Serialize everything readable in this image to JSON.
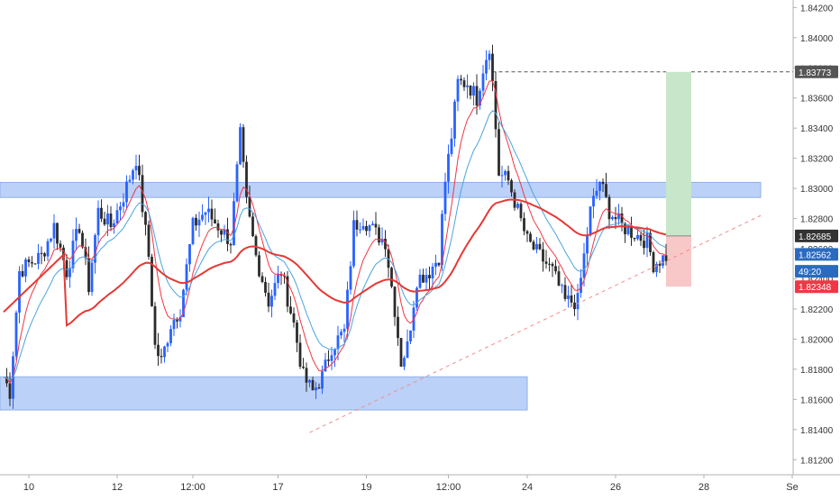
{
  "chart_data": {
    "type": "candlestick",
    "title": "",
    "price_axis": {
      "ylim": [
        1.811,
        1.8425
      ],
      "ticks": [
        "1.84200",
        "1.84000",
        "1.83800",
        "1.83600",
        "1.83400",
        "1.83200",
        "1.83000",
        "1.82800",
        "1.82600",
        "1.82400",
        "1.82200",
        "1.82000",
        "1.81800",
        "1.81600",
        "1.81400",
        "1.81200"
      ],
      "tick_values": [
        1.842,
        1.84,
        1.838,
        1.836,
        1.834,
        1.832,
        1.83,
        1.828,
        1.826,
        1.824,
        1.822,
        1.82,
        1.818,
        1.816,
        1.814,
        1.812
      ]
    },
    "time_axis": {
      "labels": [
        "10",
        "12",
        "12:00",
        "17",
        "19",
        "12:00",
        "24",
        "26",
        "28",
        "Se"
      ],
      "bar_index": [
        8,
        36,
        60,
        87,
        115,
        141,
        166,
        194,
        222,
        250
      ]
    },
    "bars": 250,
    "markers": [
      {
        "label": "1.83773",
        "value": 1.83773,
        "color": "#555555"
      },
      {
        "label": "1.82685",
        "value": 1.82685,
        "color": "#333333"
      },
      {
        "label": "1.82562",
        "value": 1.82562,
        "color": "#2a6bbf"
      },
      {
        "label": "49:20",
        "value": 1.8245,
        "color": "#2a6bbf"
      },
      {
        "label": "1.82348",
        "value": 1.82348,
        "color": "#f23645"
      }
    ],
    "zones": [
      {
        "name": "resistance",
        "from": 1.8294,
        "to": 1.8304,
        "x0": 0,
        "x1": 240
      },
      {
        "name": "support",
        "from": 1.8153,
        "to": 1.8175,
        "x0": 0,
        "x1": 166
      }
    ],
    "position": {
      "entry": 1.82685,
      "target": 1.83773,
      "stop": 1.82348,
      "x0": 210,
      "x1": 218
    },
    "trendline": {
      "from": [
        97,
        1.8138
      ],
      "to": [
        240,
        1.8282
      ]
    },
    "colors": {
      "up": "#2962ff",
      "down": "#2b2b2b",
      "ema_fast": "#f23645",
      "ema_mid": "#4aa3df",
      "ema_slow": "#e53935",
      "zone": "#a4c2f4",
      "profit": "#c8e6c9",
      "loss": "#f8c8c8"
    }
  }
}
